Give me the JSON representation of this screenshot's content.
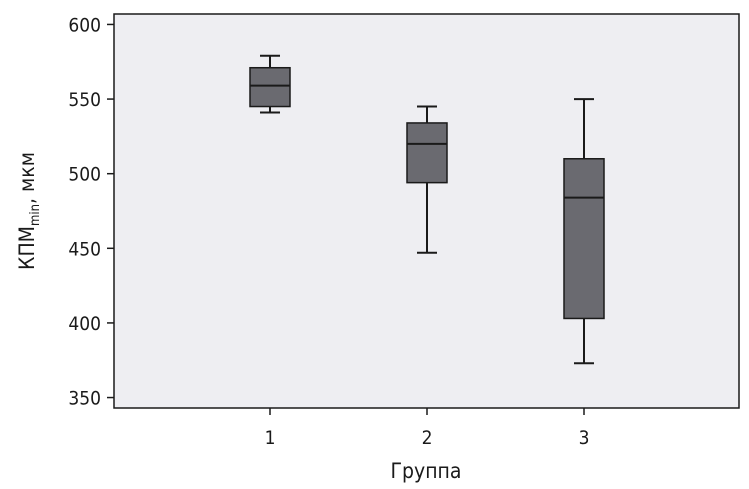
{
  "chart_data": {
    "type": "boxplot",
    "xlabel": "Группа",
    "ylabel": {
      "main": "КПМ",
      "subscript": "min",
      "suffix": ", мкм"
    },
    "ylim": [
      343,
      607
    ],
    "yticks": [
      350,
      400,
      450,
      500,
      550,
      600
    ],
    "categories": [
      "1",
      "2",
      "3"
    ],
    "boxes": [
      {
        "category": "1",
        "whisker_low": 541,
        "q1": 545,
        "median": 559,
        "q3": 571,
        "whisker_high": 579
      },
      {
        "category": "2",
        "whisker_low": 447,
        "q1": 494,
        "median": 520,
        "q3": 534,
        "whisker_high": 545
      },
      {
        "category": "3",
        "whisker_low": 373,
        "q1": 403,
        "median": 484,
        "q3": 510,
        "whisker_high": 550
      }
    ],
    "grid": false,
    "legend": "none",
    "colors": {
      "plot_background": "#eeeef2",
      "box_fill": "#6a6a70",
      "line": "#1a1a1a"
    }
  }
}
